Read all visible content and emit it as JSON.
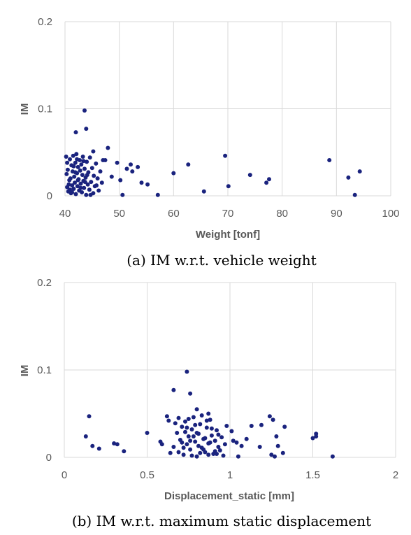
{
  "colors": {
    "point": "#1a237e",
    "grid": "#d9d9d9",
    "text": "#595959"
  },
  "chart_data": [
    {
      "type": "scatter",
      "xlabel": "Weight [tonf]",
      "ylabel": "IM",
      "caption": "(a) IM w.r.t. vehicle weight",
      "xlim": [
        40,
        100
      ],
      "ylim": [
        0,
        0.2
      ],
      "xticks": [
        "40",
        "50",
        "60",
        "70",
        "80",
        "90",
        "100"
      ],
      "yticks": [
        "0",
        "0.1",
        "0.2"
      ],
      "grid": true,
      "series": [
        {
          "points": [
            [
              40.2,
              0.045
            ],
            [
              40.3,
              0.025
            ],
            [
              40.4,
              0.01
            ],
            [
              40.5,
              0.03
            ],
            [
              40.6,
              0.005
            ],
            [
              40.8,
              0.018
            ],
            [
              40.9,
              0.042
            ],
            [
              41.0,
              0.02
            ],
            [
              41.1,
              0.003
            ],
            [
              41.2,
              0.035
            ],
            [
              41.3,
              0.012
            ],
            [
              41.4,
              0.028
            ],
            [
              41.5,
              0.046
            ],
            [
              41.6,
              0.008
            ],
            [
              41.7,
              0.022
            ],
            [
              41.8,
              0.015
            ],
            [
              41.9,
              0.038
            ],
            [
              42.0,
              0.002
            ],
            [
              42.1,
              0.048
            ],
            [
              42.2,
              0.026
            ],
            [
              42.3,
              0.011
            ],
            [
              42.4,
              0.033
            ],
            [
              42.5,
              0.019
            ],
            [
              42.6,
              0.006
            ],
            [
              42.7,
              0.041
            ],
            [
              42.8,
              0.029
            ],
            [
              42.9,
              0.014
            ],
            [
              43.0,
              0.036
            ],
            [
              43.1,
              0.004
            ],
            [
              43.2,
              0.024
            ],
            [
              43.3,
              0.045
            ],
            [
              43.4,
              0.017
            ],
            [
              43.5,
              0.009
            ],
            [
              43.6,
              0.031
            ],
            [
              43.8,
              0.021
            ],
            [
              43.9,
              0.001
            ],
            [
              44.0,
              0.039
            ],
            [
              44.2,
              0.013
            ],
            [
              44.3,
              0.027
            ],
            [
              44.5,
              0.007
            ],
            [
              44.6,
              0.044
            ],
            [
              44.8,
              0.016
            ],
            [
              45.0,
              0.032
            ],
            [
              45.2,
              0.003
            ],
            [
              45.3,
              0.023
            ],
            [
              45.5,
              0.011
            ],
            [
              45.7,
              0.037
            ],
            [
              46.0,
              0.02
            ],
            [
              46.2,
              0.006
            ],
            [
              46.5,
              0.028
            ],
            [
              46.8,
              0.015
            ],
            [
              47.0,
              0.041
            ],
            [
              40.4,
              0.038
            ],
            [
              40.7,
              0.013
            ],
            [
              41.3,
              0.004
            ],
            [
              41.9,
              0.027
            ],
            [
              42.4,
              0.018
            ],
            [
              42.9,
              0.009
            ],
            [
              43.4,
              0.04
            ],
            [
              44.1,
              0.024
            ],
            [
              44.7,
              0.001
            ],
            [
              45.8,
              0.012
            ],
            [
              41.6,
              0.034
            ],
            [
              40.9,
              0.007
            ],
            [
              42.2,
              0.042
            ],
            [
              43.7,
              0.016
            ],
            [
              42.0,
              0.073
            ],
            [
              43.6,
              0.098
            ],
            [
              43.9,
              0.077
            ],
            [
              45.2,
              0.051
            ],
            [
              47.9,
              0.055
            ],
            [
              47.4,
              0.041
            ],
            [
              48.6,
              0.022
            ],
            [
              49.6,
              0.038
            ],
            [
              50.2,
              0.018
            ],
            [
              50.6,
              0.001
            ],
            [
              51.4,
              0.031
            ],
            [
              52.1,
              0.036
            ],
            [
              52.4,
              0.028
            ],
            [
              53.4,
              0.033
            ],
            [
              54.1,
              0.015
            ],
            [
              55.2,
              0.013
            ],
            [
              57.1,
              0.001
            ],
            [
              60.0,
              0.026
            ],
            [
              62.7,
              0.036
            ],
            [
              65.6,
              0.005
            ],
            [
              69.5,
              0.046
            ],
            [
              70.1,
              0.011
            ],
            [
              74.1,
              0.024
            ],
            [
              77.1,
              0.015
            ],
            [
              77.6,
              0.019
            ],
            [
              88.7,
              0.041
            ],
            [
              92.2,
              0.021
            ],
            [
              93.4,
              0.001
            ],
            [
              94.3,
              0.028
            ]
          ]
        }
      ]
    },
    {
      "type": "scatter",
      "xlabel": "Displacement_static [mm]",
      "ylabel": "IM",
      "caption": "(b) IM w.r.t. maximum static displacement",
      "xlim": [
        0,
        2
      ],
      "ylim": [
        0,
        0.2
      ],
      "xticks": [
        "0",
        "0.5",
        "1",
        "1.5",
        "2"
      ],
      "yticks": [
        "0",
        "0.1",
        "0.2"
      ],
      "grid": true,
      "series": [
        {
          "points": [
            [
              0.13,
              0.024
            ],
            [
              0.15,
              0.047
            ],
            [
              0.17,
              0.013
            ],
            [
              0.21,
              0.01
            ],
            [
              0.3,
              0.016
            ],
            [
              0.32,
              0.015
            ],
            [
              0.36,
              0.007
            ],
            [
              0.5,
              0.028
            ],
            [
              0.58,
              0.018
            ],
            [
              0.59,
              0.015
            ],
            [
              0.62,
              0.047
            ],
            [
              0.63,
              0.042
            ],
            [
              0.66,
              0.077
            ],
            [
              0.69,
              0.045
            ],
            [
              0.74,
              0.098
            ],
            [
              0.76,
              0.073
            ],
            [
              0.8,
              0.055
            ],
            [
              0.87,
              0.05
            ],
            [
              0.64,
              0.005
            ],
            [
              0.66,
              0.012
            ],
            [
              0.68,
              0.028
            ],
            [
              0.7,
              0.02
            ],
            [
              0.71,
              0.035
            ],
            [
              0.72,
              0.003
            ],
            [
              0.73,
              0.041
            ],
            [
              0.74,
              0.015
            ],
            [
              0.75,
              0.024
            ],
            [
              0.76,
              0.009
            ],
            [
              0.77,
              0.032
            ],
            [
              0.78,
              0.046
            ],
            [
              0.79,
              0.018
            ],
            [
              0.8,
              0.001
            ],
            [
              0.81,
              0.027
            ],
            [
              0.82,
              0.038
            ],
            [
              0.83,
              0.011
            ],
            [
              0.84,
              0.021
            ],
            [
              0.85,
              0.006
            ],
            [
              0.86,
              0.034
            ],
            [
              0.87,
              0.016
            ],
            [
              0.88,
              0.043
            ],
            [
              0.89,
              0.025
            ],
            [
              0.9,
              0.004
            ],
            [
              0.91,
              0.019
            ],
            [
              0.92,
              0.031
            ],
            [
              0.93,
              0.012
            ],
            [
              0.94,
              0.008
            ],
            [
              0.95,
              0.023
            ],
            [
              0.96,
              0.002
            ],
            [
              0.97,
              0.015
            ],
            [
              0.98,
              0.036
            ],
            [
              0.67,
              0.039
            ],
            [
              0.69,
              0.006
            ],
            [
              0.71,
              0.017
            ],
            [
              0.73,
              0.029
            ],
            [
              0.75,
              0.044
            ],
            [
              0.77,
              0.002
            ],
            [
              0.79,
              0.037
            ],
            [
              0.81,
              0.013
            ],
            [
              0.83,
              0.048
            ],
            [
              0.85,
              0.022
            ],
            [
              0.87,
              0.003
            ],
            [
              0.89,
              0.033
            ],
            [
              0.91,
              0.007
            ],
            [
              0.93,
              0.026
            ],
            [
              0.72,
              0.011
            ],
            [
              0.76,
              0.019
            ],
            [
              0.8,
              0.028
            ],
            [
              0.84,
              0.009
            ],
            [
              0.88,
              0.017
            ],
            [
              0.92,
              0.004
            ],
            [
              0.86,
              0.042
            ],
            [
              0.78,
              0.024
            ],
            [
              0.82,
              0.005
            ],
            [
              0.74,
              0.034
            ],
            [
              1.01,
              0.03
            ],
            [
              1.02,
              0.019
            ],
            [
              1.04,
              0.017
            ],
            [
              1.05,
              0.001
            ],
            [
              1.07,
              0.013
            ],
            [
              1.1,
              0.021
            ],
            [
              1.13,
              0.036
            ],
            [
              1.18,
              0.012
            ],
            [
              1.19,
              0.037
            ],
            [
              1.24,
              0.047
            ],
            [
              1.25,
              0.003
            ],
            [
              1.26,
              0.043
            ],
            [
              1.27,
              0.001
            ],
            [
              1.28,
              0.024
            ],
            [
              1.29,
              0.013
            ],
            [
              1.32,
              0.005
            ],
            [
              1.33,
              0.035
            ],
            [
              1.5,
              0.022
            ],
            [
              1.52,
              0.027
            ],
            [
              1.52,
              0.024
            ],
            [
              1.62,
              0.001
            ]
          ]
        }
      ]
    }
  ]
}
